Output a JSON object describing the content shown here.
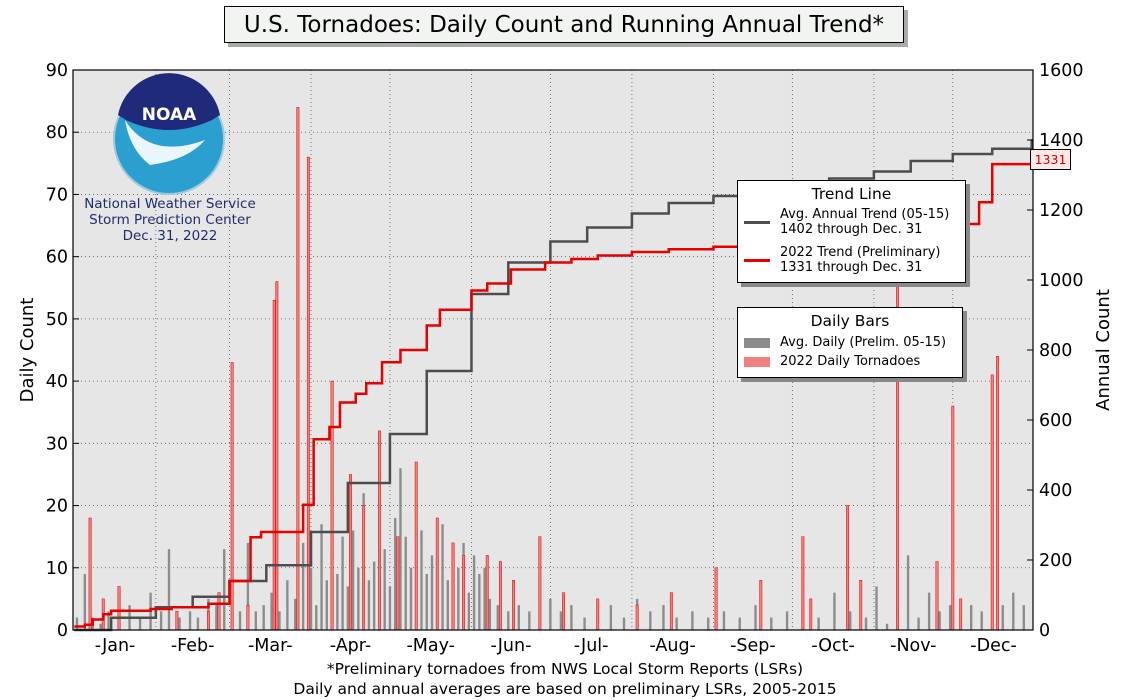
{
  "title": "U.S. Tornadoes: Daily Count and Running Annual Trend*",
  "credit": {
    "line1": "National Weather Service",
    "line2": "Storm Prediction Center",
    "line3": "Dec. 31, 2022",
    "logo_text": "NOAA"
  },
  "footer": {
    "line1": "*Preliminary tornadoes from NWS Local Storm Reports (LSRs)",
    "line2": "Daily and annual averages are based on preliminary LSRs, 2005-2015"
  },
  "trend_legend": {
    "title": "Trend Line",
    "avg_line1": "Avg. Annual Trend (05-15)",
    "avg_line2": "1402 through Dec. 31",
    "cur_line1": "2022 Trend (Preliminary)",
    "cur_line2": "1331 through Dec. 31"
  },
  "bars_legend": {
    "title": "Daily Bars",
    "avg_label": "Avg. Daily (Prelim. 05-15)",
    "cur_label": "2022 Daily Tornadoes"
  },
  "end_tag": "1331",
  "colors": {
    "plot_bg": "#e6e6e6",
    "avg_trend": "#4d4d4d",
    "cur_trend": "#e60000",
    "avg_bar": "#8c8c8c",
    "cur_bar": "#f08080"
  },
  "chart_data": {
    "type": "bar+line",
    "xlabel": "",
    "ylabel": "Daily Count",
    "y2label": "Annual Count",
    "months": [
      "-Jan-",
      "-Feb-",
      "-Mar-",
      "-Apr-",
      "-May-",
      "-Jun-",
      "-Jul-",
      "-Aug-",
      "-Sep-",
      "-Oct-",
      "-Nov-",
      "-Dec-"
    ],
    "ylim": [
      0,
      90
    ],
    "y2lim": [
      0,
      1600
    ],
    "yticks": [
      0,
      10,
      20,
      30,
      40,
      50,
      60,
      70,
      80,
      90
    ],
    "y2ticks": [
      0,
      200,
      400,
      600,
      800,
      1000,
      1200,
      1400,
      1600
    ],
    "grid": true,
    "series": [
      {
        "name": "Avg. Annual Trend (05-15)",
        "kind": "cumulative_line",
        "days": [
          1,
          15,
          32,
          46,
          60,
          74,
          91,
          105,
          121,
          135,
          152,
          166,
          182,
          196,
          213,
          227,
          244,
          258,
          274,
          288,
          305,
          319,
          335,
          350,
          365
        ],
        "values": [
          0,
          35,
          65,
          95,
          140,
          185,
          280,
          420,
          560,
          740,
          960,
          1050,
          1110,
          1150,
          1190,
          1220,
          1240,
          1260,
          1270,
          1290,
          1310,
          1340,
          1360,
          1375,
          1402
        ]
      },
      {
        "name": "2022 Trend (Preliminary)",
        "kind": "cumulative_line",
        "days": [
          1,
          5,
          8,
          12,
          15,
          30,
          38,
          41,
          52,
          60,
          68,
          72,
          88,
          92,
          98,
          102,
          108,
          112,
          118,
          125,
          135,
          140,
          152,
          158,
          167,
          180,
          190,
          200,
          213,
          227,
          244,
          260,
          274,
          290,
          305,
          320,
          335,
          345,
          350,
          365
        ],
        "values": [
          10,
          15,
          30,
          45,
          55,
          60,
          65,
          65,
          75,
          140,
          265,
          280,
          358,
          545,
          580,
          650,
          675,
          705,
          765,
          800,
          870,
          915,
          970,
          990,
          1030,
          1050,
          1060,
          1070,
          1080,
          1088,
          1095,
          1102,
          1110,
          1110,
          1120,
          1140,
          1160,
          1222,
          1331,
          1331
        ]
      },
      {
        "name": "Avg. Daily (Prelim. 05-15)",
        "kind": "daily_bars",
        "description_values": "see days/values",
        "days": [
          2,
          5,
          8,
          11,
          14,
          18,
          22,
          26,
          30,
          34,
          37,
          41,
          45,
          48,
          52,
          55,
          58,
          61,
          64,
          67,
          70,
          73,
          76,
          79,
          82,
          85,
          88,
          91,
          93,
          95,
          97,
          99,
          101,
          103,
          105,
          107,
          109,
          111,
          113,
          115,
          117,
          119,
          121,
          123,
          125,
          127,
          129,
          131,
          133,
          135,
          137,
          139,
          141,
          143,
          145,
          147,
          149,
          151,
          153,
          155,
          157,
          159,
          162,
          166,
          170,
          174,
          178,
          182,
          186,
          190,
          195,
          200,
          205,
          210,
          215,
          220,
          225,
          230,
          236,
          242,
          248,
          254,
          260,
          266,
          272,
          278,
          284,
          290,
          296,
          302,
          306,
          310,
          314,
          318,
          322,
          326,
          330,
          334,
          338,
          342,
          346,
          350,
          354,
          358,
          362
        ],
        "values": [
          2,
          9,
          2,
          1,
          3,
          1,
          4,
          2,
          6,
          3,
          13,
          2,
          3,
          2,
          5,
          4,
          13,
          2,
          3,
          14,
          3,
          4,
          6,
          3,
          8,
          5,
          14,
          10,
          4,
          17,
          8,
          12,
          9,
          15,
          7,
          16,
          10,
          22,
          8,
          11,
          9,
          13,
          7,
          18,
          26,
          15,
          10,
          14,
          16,
          9,
          12,
          11,
          17,
          8,
          13,
          10,
          14,
          6,
          12,
          9,
          10,
          5,
          4,
          3,
          4,
          3,
          4,
          5,
          3,
          4,
          2,
          3,
          4,
          2,
          5,
          3,
          4,
          2,
          3,
          2,
          3,
          2,
          4,
          2,
          3,
          5,
          2,
          6,
          3,
          2,
          7,
          1,
          4,
          12,
          2,
          6,
          3,
          4,
          2,
          4,
          3,
          5,
          4,
          6,
          4
        ]
      },
      {
        "name": "2022 Daily Tornadoes",
        "kind": "daily_bars",
        "days": [
          7,
          12,
          18,
          40,
          52,
          56,
          61,
          67,
          77,
          78,
          86,
          90,
          99,
          106,
          111,
          117,
          124,
          131,
          139,
          145,
          149,
          158,
          163,
          168,
          178,
          187,
          200,
          215,
          228,
          245,
          262,
          278,
          281,
          295,
          300,
          314,
          329,
          335,
          338,
          350,
          352
        ],
        "values": [
          18,
          5,
          7,
          3,
          3,
          6,
          43,
          4,
          53,
          56,
          84,
          76,
          40,
          25,
          20,
          32,
          15,
          27,
          18,
          14,
          12,
          12,
          11,
          8,
          15,
          6,
          5,
          4,
          6,
          10,
          8,
          15,
          5,
          20,
          8,
          60,
          11,
          36,
          5,
          41,
          44
        ]
      }
    ]
  }
}
